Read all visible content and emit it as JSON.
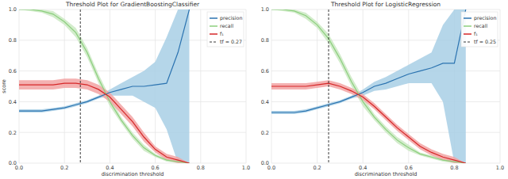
{
  "chart_data": [
    {
      "type": "line",
      "title": "Threshold Plot for GradientBoostingClassifier",
      "xlabel": "discrimination threshold",
      "ylabel": "score",
      "x": [
        0,
        0.05,
        0.1,
        0.15,
        0.2,
        0.25,
        0.3,
        0.35,
        0.4,
        0.45,
        0.5,
        0.55,
        0.6,
        0.65,
        0.7,
        0.75
      ],
      "xlim": [
        0,
        1
      ],
      "ylim": [
        0,
        1
      ],
      "xticks": [
        {
          "value": 0,
          "label": "0.0"
        },
        {
          "value": 0.2,
          "label": "0.2"
        },
        {
          "value": 0.4,
          "label": "0.4"
        },
        {
          "value": 0.6,
          "label": "0.6"
        },
        {
          "value": 0.8,
          "label": "0.8"
        },
        {
          "value": 1,
          "label": "1.0"
        }
      ],
      "yticks": [
        {
          "value": 0,
          "label": "0.0"
        },
        {
          "value": 0.2,
          "label": "0.2"
        },
        {
          "value": 0.4,
          "label": "0.4"
        },
        {
          "value": 0.6,
          "label": "0.6"
        },
        {
          "value": 0.8,
          "label": "0.8"
        },
        {
          "value": 1,
          "label": "1.0"
        }
      ],
      "grid": true,
      "legend": "upper right",
      "threshold": 0.27,
      "threshold_label": "tf = 0.27",
      "series": [
        {
          "name": "precision",
          "color": "#2b73b0",
          "band_color": "#a8cfe5",
          "values": [
            0.34,
            0.34,
            0.34,
            0.35,
            0.36,
            0.38,
            0.4,
            0.43,
            0.46,
            0.48,
            0.5,
            0.5,
            0.51,
            0.52,
            0.72,
            1.0
          ],
          "lower": [
            0.33,
            0.33,
            0.33,
            0.34,
            0.35,
            0.37,
            0.39,
            0.42,
            0.44,
            0.44,
            0.44,
            0.4,
            0.36,
            0.22,
            0,
            0
          ],
          "upper": [
            0.35,
            0.35,
            0.35,
            0.36,
            0.37,
            0.39,
            0.41,
            0.44,
            0.48,
            0.52,
            0.56,
            0.6,
            0.66,
            0.82,
            1,
            1
          ]
        },
        {
          "name": "recall",
          "color": "#8ccf7e",
          "band_color": "#cbe9c3",
          "values": [
            1.0,
            1.0,
            0.99,
            0.97,
            0.92,
            0.85,
            0.72,
            0.55,
            0.4,
            0.28,
            0.18,
            0.1,
            0.05,
            0.02,
            0.01,
            0.0
          ],
          "lower": [
            1.0,
            0.99,
            0.98,
            0.95,
            0.9,
            0.82,
            0.69,
            0.52,
            0.37,
            0.26,
            0.16,
            0.08,
            0.04,
            0.01,
            0.0,
            0.0
          ],
          "upper": [
            1.0,
            1.0,
            1.0,
            0.99,
            0.94,
            0.88,
            0.75,
            0.58,
            0.43,
            0.3,
            0.2,
            0.12,
            0.06,
            0.03,
            0.02,
            0.0
          ]
        },
        {
          "name": "f₁",
          "color": "#d62728",
          "band_color": "#f2a3a3",
          "values": [
            0.51,
            0.51,
            0.51,
            0.51,
            0.52,
            0.52,
            0.51,
            0.48,
            0.43,
            0.35,
            0.27,
            0.17,
            0.09,
            0.04,
            0.02,
            0.0
          ],
          "lower": [
            0.48,
            0.48,
            0.48,
            0.48,
            0.49,
            0.49,
            0.48,
            0.45,
            0.4,
            0.32,
            0.24,
            0.14,
            0.07,
            0.02,
            0.0,
            0.0
          ],
          "upper": [
            0.54,
            0.54,
            0.54,
            0.54,
            0.55,
            0.55,
            0.54,
            0.51,
            0.46,
            0.38,
            0.3,
            0.2,
            0.11,
            0.06,
            0.04,
            0.0
          ]
        }
      ]
    },
    {
      "type": "line",
      "title": "Threshold Plot for LogisticRegression",
      "xlabel": "discrimination threshold",
      "x": [
        0,
        0.05,
        0.1,
        0.15,
        0.2,
        0.25,
        0.3,
        0.35,
        0.4,
        0.45,
        0.5,
        0.55,
        0.6,
        0.65,
        0.7,
        0.75,
        0.8,
        0.85
      ],
      "xlim": [
        0,
        1
      ],
      "ylim": [
        0,
        1
      ],
      "xticks": [
        {
          "value": 0,
          "label": "0.0"
        },
        {
          "value": 0.2,
          "label": "0.2"
        },
        {
          "value": 0.4,
          "label": "0.4"
        },
        {
          "value": 0.6,
          "label": "0.6"
        },
        {
          "value": 0.8,
          "label": "0.8"
        },
        {
          "value": 1,
          "label": "1.0"
        }
      ],
      "yticks": [
        {
          "value": 0,
          "label": "0.0"
        },
        {
          "value": 0.2,
          "label": "0.2"
        },
        {
          "value": 0.4,
          "label": "0.4"
        },
        {
          "value": 0.6,
          "label": "0.6"
        },
        {
          "value": 0.8,
          "label": "0.8"
        },
        {
          "value": 1,
          "label": "1.0"
        }
      ],
      "grid": true,
      "legend": "upper right",
      "threshold": 0.25,
      "threshold_label": "tf = 0.25",
      "series": [
        {
          "name": "precision",
          "color": "#2b73b0",
          "band_color": "#a8cfe5",
          "values": [
            0.33,
            0.33,
            0.33,
            0.34,
            0.36,
            0.38,
            0.4,
            0.43,
            0.46,
            0.5,
            0.52,
            0.55,
            0.58,
            0.6,
            0.62,
            0.65,
            0.65,
            1.0
          ],
          "lower": [
            0.32,
            0.32,
            0.32,
            0.33,
            0.35,
            0.37,
            0.39,
            0.42,
            0.44,
            0.47,
            0.48,
            0.5,
            0.52,
            0.52,
            0.52,
            0.4,
            0,
            0
          ],
          "upper": [
            0.34,
            0.34,
            0.34,
            0.35,
            0.37,
            0.39,
            0.41,
            0.44,
            0.48,
            0.53,
            0.56,
            0.6,
            0.64,
            0.68,
            0.72,
            0.9,
            1,
            1
          ]
        },
        {
          "name": "recall",
          "color": "#8ccf7e",
          "band_color": "#cbe9c3",
          "values": [
            1.0,
            1.0,
            0.99,
            0.96,
            0.9,
            0.81,
            0.68,
            0.53,
            0.4,
            0.3,
            0.22,
            0.15,
            0.1,
            0.06,
            0.04,
            0.02,
            0.01,
            0.0
          ],
          "lower": [
            1.0,
            0.99,
            0.98,
            0.94,
            0.88,
            0.78,
            0.65,
            0.5,
            0.37,
            0.28,
            0.2,
            0.13,
            0.08,
            0.05,
            0.03,
            0.01,
            0.0,
            0.0
          ],
          "upper": [
            1.0,
            1.0,
            1.0,
            0.98,
            0.92,
            0.84,
            0.71,
            0.56,
            0.43,
            0.32,
            0.24,
            0.17,
            0.12,
            0.07,
            0.05,
            0.03,
            0.02,
            0.0
          ]
        },
        {
          "name": "f₁",
          "color": "#d62728",
          "band_color": "#f2a3a3",
          "values": [
            0.5,
            0.5,
            0.5,
            0.5,
            0.51,
            0.52,
            0.5,
            0.47,
            0.43,
            0.37,
            0.3,
            0.23,
            0.17,
            0.11,
            0.07,
            0.04,
            0.02,
            0.0
          ],
          "lower": [
            0.48,
            0.48,
            0.48,
            0.48,
            0.49,
            0.5,
            0.48,
            0.45,
            0.41,
            0.35,
            0.28,
            0.21,
            0.15,
            0.09,
            0.05,
            0.02,
            0.0,
            0.0
          ],
          "upper": [
            0.52,
            0.52,
            0.52,
            0.52,
            0.53,
            0.54,
            0.52,
            0.49,
            0.45,
            0.39,
            0.32,
            0.25,
            0.19,
            0.13,
            0.09,
            0.06,
            0.04,
            0.0
          ]
        }
      ]
    }
  ]
}
